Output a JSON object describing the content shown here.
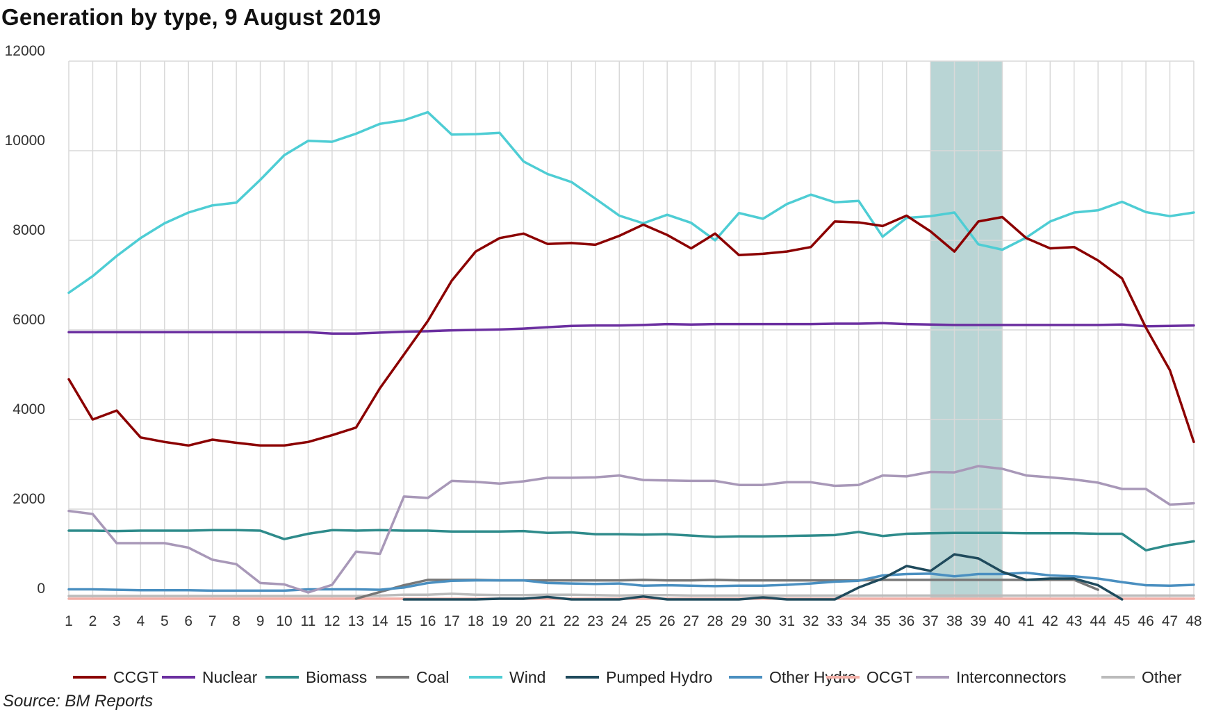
{
  "title": "Generation by type, 9 August 2019",
  "source": "Source: BM Reports",
  "chart_data": {
    "type": "line",
    "title": "Generation by type, 9 August 2019",
    "xlabel": "",
    "ylabel": "",
    "ylim": [
      0,
      12000
    ],
    "yticks": [
      "12000",
      "10000",
      "8000",
      "6000",
      "4000",
      "2000",
      "0"
    ],
    "x": [
      1,
      2,
      3,
      4,
      5,
      6,
      7,
      8,
      9,
      10,
      11,
      12,
      13,
      14,
      15,
      16,
      17,
      18,
      19,
      20,
      21,
      22,
      23,
      24,
      25,
      26,
      27,
      28,
      29,
      30,
      31,
      32,
      33,
      34,
      35,
      36,
      37,
      38,
      39,
      40,
      41,
      42,
      43,
      44,
      45,
      46,
      47,
      48
    ],
    "grid": true,
    "legend_position": "bottom",
    "highlight": {
      "from": 37,
      "to": 40,
      "color": "#7fb3b3"
    },
    "series": [
      {
        "name": "CCGT",
        "color": "#8b0000",
        "width": 3.5,
        "values": [
          4900,
          4000,
          4200,
          3600,
          3500,
          3420,
          3550,
          3480,
          3420,
          3420,
          3500,
          3650,
          3820,
          4700,
          5450,
          6200,
          7100,
          7750,
          8050,
          8150,
          7920,
          7940,
          7900,
          8100,
          8350,
          8120,
          7820,
          8150,
          7670,
          7700,
          7750,
          7850,
          8420,
          8400,
          8320,
          8550,
          8200,
          7750,
          8420,
          8520,
          8050,
          7820,
          7850,
          7550,
          7150,
          6050,
          5100,
          3500
        ]
      },
      {
        "name": "Nuclear",
        "color": "#6b2fa0",
        "width": 3.5,
        "values": [
          5950,
          5950,
          5950,
          5950,
          5950,
          5950,
          5950,
          5950,
          5950,
          5950,
          5950,
          5920,
          5920,
          5940,
          5960,
          5970,
          5990,
          6000,
          6010,
          6030,
          6060,
          6090,
          6100,
          6100,
          6110,
          6130,
          6120,
          6130,
          6130,
          6130,
          6130,
          6130,
          6140,
          6140,
          6150,
          6130,
          6120,
          6110,
          6110,
          6110,
          6110,
          6110,
          6110,
          6110,
          6120,
          6080,
          6090,
          6100
        ]
      },
      {
        "name": "Biomass",
        "color": "#2e8b8b",
        "width": 3.5,
        "values": [
          1520,
          1520,
          1510,
          1520,
          1520,
          1520,
          1530,
          1530,
          1520,
          1330,
          1450,
          1530,
          1520,
          1530,
          1520,
          1520,
          1500,
          1500,
          1500,
          1510,
          1470,
          1480,
          1440,
          1440,
          1430,
          1440,
          1410,
          1380,
          1390,
          1390,
          1400,
          1410,
          1420,
          1490,
          1400,
          1450,
          1460,
          1470,
          1470,
          1470,
          1460,
          1460,
          1460,
          1450,
          1450,
          1080,
          1200,
          1280
        ]
      },
      {
        "name": "Coal",
        "color": "#777777",
        "width": 3.5,
        "values": [
          null,
          null,
          null,
          null,
          null,
          null,
          null,
          null,
          null,
          null,
          null,
          null,
          0,
          150,
          300,
          420,
          420,
          420,
          410,
          410,
          410,
          410,
          410,
          410,
          420,
          410,
          410,
          420,
          410,
          410,
          410,
          410,
          410,
          410,
          420,
          420,
          420,
          420,
          420,
          420,
          420,
          420,
          420,
          200,
          null,
          null,
          null,
          null
        ]
      },
      {
        "name": "Wind",
        "color": "#4ecdd4",
        "width": 3.5,
        "values": [
          6830,
          7200,
          7650,
          8050,
          8380,
          8620,
          8780,
          8840,
          9350,
          9900,
          10220,
          10200,
          10380,
          10600,
          10680,
          10860,
          10360,
          10370,
          10400,
          9760,
          9480,
          9300,
          8930,
          8550,
          8380,
          8570,
          8390,
          8000,
          8610,
          8480,
          8810,
          9020,
          8850,
          8880,
          8080,
          8500,
          8540,
          8620,
          7910,
          7790,
          8060,
          8420,
          8620,
          8670,
          8860,
          8630,
          8540,
          8620
        ]
      },
      {
        "name": "Pumped Hydro",
        "color": "#1f4a5c",
        "width": 3.5,
        "values": [
          null,
          null,
          null,
          null,
          null,
          null,
          null,
          null,
          null,
          null,
          null,
          null,
          null,
          null,
          -20,
          -20,
          -20,
          -20,
          0,
          0,
          40,
          -20,
          -20,
          -20,
          50,
          -20,
          -20,
          -20,
          -20,
          30,
          -20,
          -20,
          -20,
          250,
          450,
          730,
          620,
          990,
          900,
          600,
          420,
          450,
          450,
          300,
          -20,
          null,
          null,
          null
        ]
      },
      {
        "name": "Other Hydro",
        "color": "#4a8fc0",
        "width": 3.5,
        "values": [
          210,
          210,
          200,
          190,
          190,
          190,
          180,
          180,
          180,
          180,
          210,
          210,
          210,
          200,
          250,
          350,
          400,
          410,
          410,
          410,
          350,
          340,
          330,
          340,
          290,
          300,
          290,
          280,
          290,
          290,
          310,
          340,
          380,
          400,
          520,
          550,
          560,
          500,
          550,
          550,
          580,
          520,
          500,
          450,
          370,
          300,
          290,
          310
        ]
      },
      {
        "name": "OCGT",
        "color": "#f2b0a8",
        "width": 3.5,
        "values": [
          0,
          0,
          0,
          0,
          0,
          0,
          0,
          0,
          0,
          0,
          0,
          0,
          0,
          0,
          0,
          0,
          0,
          0,
          0,
          0,
          0,
          0,
          0,
          0,
          0,
          0,
          0,
          0,
          0,
          0,
          0,
          0,
          0,
          0,
          0,
          0,
          0,
          0,
          0,
          0,
          0,
          0,
          0,
          0,
          0,
          0,
          0,
          0
        ]
      },
      {
        "name": "Interconnectors",
        "color": "#a898b8",
        "width": 3.5,
        "values": [
          1960,
          1890,
          1240,
          1240,
          1240,
          1140,
          870,
          770,
          350,
          320,
          140,
          310,
          1050,
          1000,
          2280,
          2250,
          2630,
          2610,
          2570,
          2620,
          2700,
          2700,
          2710,
          2750,
          2650,
          2640,
          2630,
          2630,
          2540,
          2540,
          2600,
          2600,
          2520,
          2540,
          2750,
          2730,
          2830,
          2820,
          2960,
          2900,
          2750,
          2710,
          2660,
          2590,
          2450,
          2450,
          2100,
          2130
        ]
      },
      {
        "name": "Other",
        "color": "#bbbbbb",
        "width": 3.5,
        "values": [
          60,
          60,
          60,
          60,
          60,
          60,
          60,
          60,
          60,
          60,
          60,
          60,
          60,
          70,
          90,
          90,
          110,
          90,
          80,
          80,
          90,
          90,
          80,
          70,
          80,
          80,
          70,
          70,
          70,
          70,
          70,
          70,
          70,
          70,
          70,
          70,
          70,
          70,
          70,
          70,
          70,
          70,
          70,
          70,
          70,
          70,
          70,
          70
        ]
      }
    ]
  }
}
